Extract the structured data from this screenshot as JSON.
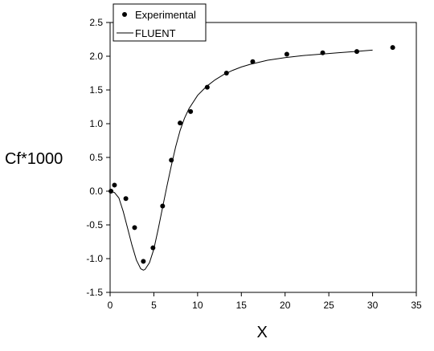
{
  "chart_data": {
    "type": "scatter",
    "xlabel": "X",
    "ylabel": "Cf*1000",
    "xlim": [
      0,
      35
    ],
    "ylim": [
      -1.5,
      2.5
    ],
    "x_ticks": [
      0,
      5,
      10,
      15,
      20,
      25,
      30,
      35
    ],
    "y_ticks": [
      -1.5,
      -1.0,
      -0.5,
      0.0,
      0.5,
      1.0,
      1.5,
      2.0,
      2.5
    ],
    "x_tick_labels": [
      "0",
      "5",
      "10",
      "15",
      "20",
      "25",
      "30",
      "35"
    ],
    "y_tick_labels": [
      "-1.5",
      "-1.0",
      "-0.5",
      "0.0",
      "0.5",
      "1.0",
      "1.5",
      "2.0",
      "2.5"
    ],
    "grid": false,
    "legend_position": "top-left",
    "series": [
      {
        "name": "Experimental",
        "style": "markers",
        "color": "#000000",
        "x": [
          0.1,
          0.5,
          1.8,
          2.8,
          3.8,
          4.9,
          6.0,
          7.0,
          8.0,
          9.2,
          11.1,
          13.3,
          16.3,
          20.2,
          24.3,
          28.2,
          32.3
        ],
        "y": [
          0.0,
          0.09,
          -0.11,
          -0.54,
          -1.04,
          -0.84,
          -0.22,
          0.46,
          1.01,
          1.18,
          1.54,
          1.75,
          1.92,
          2.03,
          2.05,
          2.07,
          2.13
        ]
      },
      {
        "name": "FLUENT",
        "style": "line",
        "color": "#000000",
        "x": [
          0.0,
          0.5,
          1.0,
          1.5,
          2.0,
          2.5,
          3.0,
          3.5,
          3.8,
          4.0,
          4.5,
          5.0,
          5.5,
          6.0,
          6.5,
          7.0,
          7.5,
          8.0,
          8.5,
          9.0,
          10.0,
          11.0,
          12.0,
          13.0,
          14.0,
          15.0,
          16.0,
          18.0,
          20.0,
          22.0,
          24.0,
          26.0,
          28.0,
          30.0
        ],
        "y": [
          0.0,
          -0.02,
          -0.1,
          -0.3,
          -0.55,
          -0.8,
          -1.02,
          -1.15,
          -1.17,
          -1.16,
          -1.06,
          -0.86,
          -0.56,
          -0.24,
          0.08,
          0.38,
          0.66,
          0.9,
          1.08,
          1.22,
          1.42,
          1.55,
          1.65,
          1.73,
          1.79,
          1.84,
          1.88,
          1.94,
          1.98,
          2.01,
          2.03,
          2.05,
          2.07,
          2.09
        ]
      }
    ]
  }
}
